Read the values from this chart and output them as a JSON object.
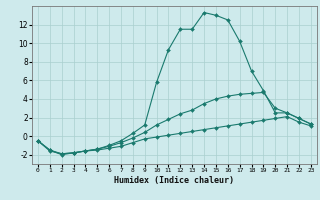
{
  "xlabel": "Humidex (Indice chaleur)",
  "background_color": "#ceeaec",
  "grid_color": "#aacfcf",
  "line_color": "#1a7a6e",
  "x_ticks": [
    0,
    1,
    2,
    3,
    4,
    5,
    6,
    7,
    8,
    9,
    10,
    11,
    12,
    13,
    14,
    15,
    16,
    17,
    18,
    19,
    20,
    21,
    22,
    23
  ],
  "y_ticks": [
    -2,
    0,
    2,
    4,
    6,
    8,
    10,
    12
  ],
  "ylim": [
    -3.0,
    14.0
  ],
  "xlim": [
    -0.5,
    23.5
  ],
  "series": [
    {
      "x": [
        0,
        1,
        2,
        3,
        4,
        5,
        6,
        7,
        8,
        9,
        10,
        11,
        12,
        13,
        14,
        15,
        16,
        17,
        18,
        19,
        20,
        21,
        22,
        23
      ],
      "y": [
        -0.5,
        -1.5,
        -2.0,
        -1.8,
        -1.6,
        -1.5,
        -1.3,
        -1.1,
        -0.7,
        -0.3,
        -0.1,
        0.1,
        0.3,
        0.5,
        0.7,
        0.9,
        1.1,
        1.3,
        1.5,
        1.7,
        1.9,
        2.1,
        1.5,
        1.1
      ]
    },
    {
      "x": [
        0,
        1,
        2,
        3,
        4,
        5,
        6,
        7,
        8,
        9,
        10,
        11,
        12,
        13,
        14,
        15,
        16,
        17,
        18,
        19,
        20,
        21,
        22,
        23
      ],
      "y": [
        -0.5,
        -1.5,
        -1.9,
        -1.8,
        -1.6,
        -1.4,
        -1.1,
        -0.7,
        -0.2,
        0.4,
        1.2,
        1.8,
        2.4,
        2.8,
        3.5,
        4.0,
        4.3,
        4.5,
        4.6,
        4.7,
        3.0,
        2.5,
        1.9,
        1.3
      ]
    },
    {
      "x": [
        0,
        1,
        2,
        3,
        4,
        5,
        6,
        7,
        8,
        9,
        10,
        11,
        12,
        13,
        14,
        15,
        16,
        17,
        18,
        19,
        20,
        21,
        22,
        23
      ],
      "y": [
        -0.5,
        -1.6,
        -1.9,
        -1.8,
        -1.6,
        -1.4,
        -1.0,
        -0.5,
        0.3,
        1.2,
        5.8,
        9.3,
        11.5,
        11.5,
        13.3,
        13.0,
        12.5,
        10.2,
        7.0,
        4.9,
        2.5,
        2.5,
        1.9,
        1.3
      ]
    }
  ]
}
